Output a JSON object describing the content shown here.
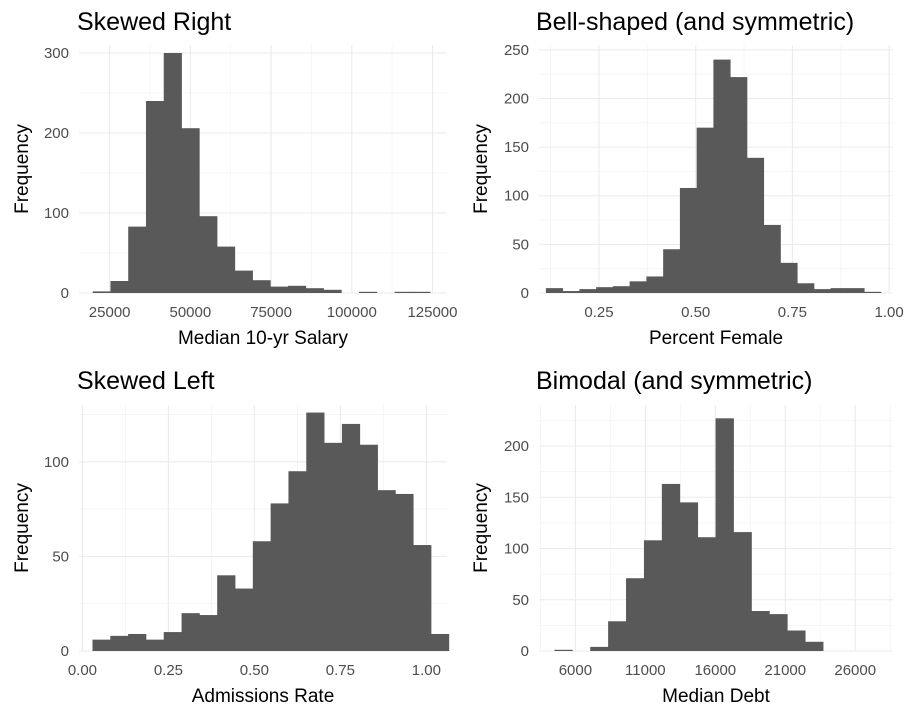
{
  "chart_data": [
    {
      "type": "bar",
      "title": "Skewed Right",
      "xlabel": "Median 10-yr Salary",
      "ylabel": "Frequency",
      "xlim": [
        15500,
        129500
      ],
      "ylim": [
        0,
        310
      ],
      "xticks": [
        25000,
        50000,
        75000,
        100000,
        125000
      ],
      "xtick_labels": [
        "25000",
        "50000",
        "75000",
        "100000",
        "125000"
      ],
      "yticks": [
        0,
        100,
        200,
        300
      ],
      "ytick_labels": [
        "0",
        "100",
        "200",
        "300"
      ],
      "bin_width": 5500,
      "bin_starts": [
        19750,
        25250,
        30750,
        36250,
        41750,
        47250,
        52750,
        58250,
        63750,
        69250,
        74750,
        80250,
        85750,
        91250,
        96750,
        102250,
        107750,
        113250,
        118750
      ],
      "values": [
        2,
        15,
        83,
        240,
        300,
        206,
        96,
        58,
        28,
        16,
        8,
        9,
        6,
        4,
        0,
        1,
        0,
        1,
        1
      ]
    },
    {
      "type": "bar",
      "title": "Bell-shaped (and symmetric)",
      "xlabel": "Percent Female",
      "ylabel": "Frequency",
      "xlim": [
        0.095,
        1.01
      ],
      "ylim": [
        0,
        255
      ],
      "xticks": [
        0.25,
        0.5,
        0.75,
        1.0
      ],
      "xtick_labels": [
        "0.25",
        "0.50",
        "0.75",
        "1.00"
      ],
      "yticks": [
        0,
        50,
        100,
        150,
        200,
        250
      ],
      "ytick_labels": [
        "0",
        "50",
        "100",
        "150",
        "200",
        "250"
      ],
      "bin_width": 0.0433,
      "bin_starts": [
        0.1128,
        0.1561,
        0.1994,
        0.2427,
        0.286,
        0.3293,
        0.3726,
        0.4159,
        0.4592,
        0.5025,
        0.5458,
        0.5891,
        0.6324,
        0.6757,
        0.719,
        0.7623,
        0.8056,
        0.8489,
        0.8922,
        0.9355
      ],
      "values": [
        5,
        2,
        4,
        6,
        7,
        12,
        17,
        45,
        108,
        170,
        240,
        222,
        139,
        70,
        31,
        10,
        4,
        5,
        5,
        1
      ]
    },
    {
      "type": "bar",
      "title": "Skewed Left",
      "xlabel": "Admissions Rate",
      "ylabel": "Frequency",
      "xlim": [
        -0.01,
        1.06
      ],
      "ylim": [
        0,
        130
      ],
      "xticks": [
        0.0,
        0.25,
        0.5,
        0.75,
        1.0
      ],
      "xtick_labels": [
        "0.00",
        "0.25",
        "0.50",
        "0.75",
        "1.00"
      ],
      "yticks": [
        0,
        50,
        100
      ],
      "ytick_labels": [
        "0",
        "50",
        "100"
      ],
      "bin_width": 0.0518,
      "bin_starts": [
        0.0292,
        0.081,
        0.1328,
        0.1846,
        0.2364,
        0.2882,
        0.34,
        0.3918,
        0.4436,
        0.4954,
        0.5472,
        0.599,
        0.6508,
        0.7026,
        0.7544,
        0.8062,
        0.858,
        0.9098,
        0.9616,
        1.0134
      ],
      "values": [
        6,
        8,
        9,
        6,
        10,
        20,
        19,
        40,
        33,
        58,
        78,
        95,
        126,
        110,
        120,
        109,
        85,
        83,
        56,
        9
      ]
    },
    {
      "type": "bar",
      "title": "Bimodal (and symmetric)",
      "xlabel": "Median Debt",
      "ylabel": "Frequency",
      "xlim": [
        3400,
        28700
      ],
      "ylim": [
        0,
        240
      ],
      "xticks": [
        6000,
        11000,
        16000,
        21000,
        26000
      ],
      "xtick_labels": [
        "6000",
        "11000",
        "16000",
        "21000",
        "26000"
      ],
      "yticks": [
        0,
        50,
        100,
        150,
        200
      ],
      "ytick_labels": [
        "0",
        "50",
        "100",
        "150",
        "200"
      ],
      "bin_width": 1280,
      "bin_starts": [
        4500,
        5780,
        7060,
        8340,
        9620,
        10900,
        12180,
        13460,
        14740,
        16020,
        17300,
        18580,
        19860,
        21140,
        22420,
        23700,
        24980,
        26260
      ],
      "values": [
        1,
        0,
        4,
        29,
        71,
        108,
        163,
        145,
        111,
        227,
        116,
        39,
        36,
        20,
        9,
        0,
        0,
        0
      ]
    }
  ]
}
